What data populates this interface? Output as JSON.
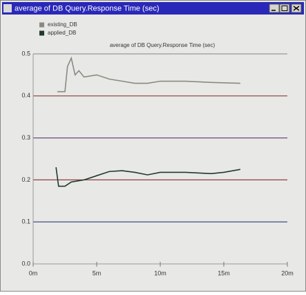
{
  "window": {
    "title": "average of DB Query.Response Time (sec)"
  },
  "chart_data": {
    "type": "line",
    "title": "average of DB Query.Response Time (sec)",
    "series": [
      {
        "name": "existing_DB",
        "color": "#8a8a80",
        "x": [
          1.9,
          2.5,
          2.7,
          3.0,
          3.3,
          3.6,
          4.0,
          5.0,
          6.0,
          7.0,
          8.0,
          9.0,
          10.0,
          12.0,
          14.0,
          16.3
        ],
        "values": [
          0.41,
          0.41,
          0.47,
          0.49,
          0.45,
          0.46,
          0.445,
          0.45,
          0.44,
          0.435,
          0.43,
          0.43,
          0.435,
          0.435,
          0.432,
          0.43
        ]
      },
      {
        "name": "applied_DB",
        "color": "#1e3a2a",
        "x": [
          1.8,
          2.0,
          2.5,
          3.0,
          4.0,
          5.0,
          6.0,
          7.0,
          8.0,
          9.0,
          10.0,
          12.0,
          14.0,
          15.0,
          16.3
        ],
        "values": [
          0.23,
          0.185,
          0.185,
          0.195,
          0.2,
          0.21,
          0.22,
          0.222,
          0.218,
          0.212,
          0.218,
          0.218,
          0.215,
          0.218,
          0.225
        ]
      }
    ],
    "xlim": [
      0,
      20
    ],
    "xticks": [
      {
        "value": 0,
        "label": "0m"
      },
      {
        "value": 5,
        "label": "5m"
      },
      {
        "value": 10,
        "label": "10m"
      },
      {
        "value": 15,
        "label": "15m"
      },
      {
        "value": 20,
        "label": "20m"
      }
    ],
    "ylim": [
      0,
      0.5
    ],
    "yticks": [
      {
        "value": 0,
        "label": "0.0"
      },
      0.1,
      0.2,
      0.3,
      0.4,
      0.5
    ],
    "grid": true,
    "grid_colors": [
      "#999999",
      "#2a3c70",
      "#8a4040",
      "#6a4a80",
      "#8a3a30",
      "#999999"
    ]
  }
}
